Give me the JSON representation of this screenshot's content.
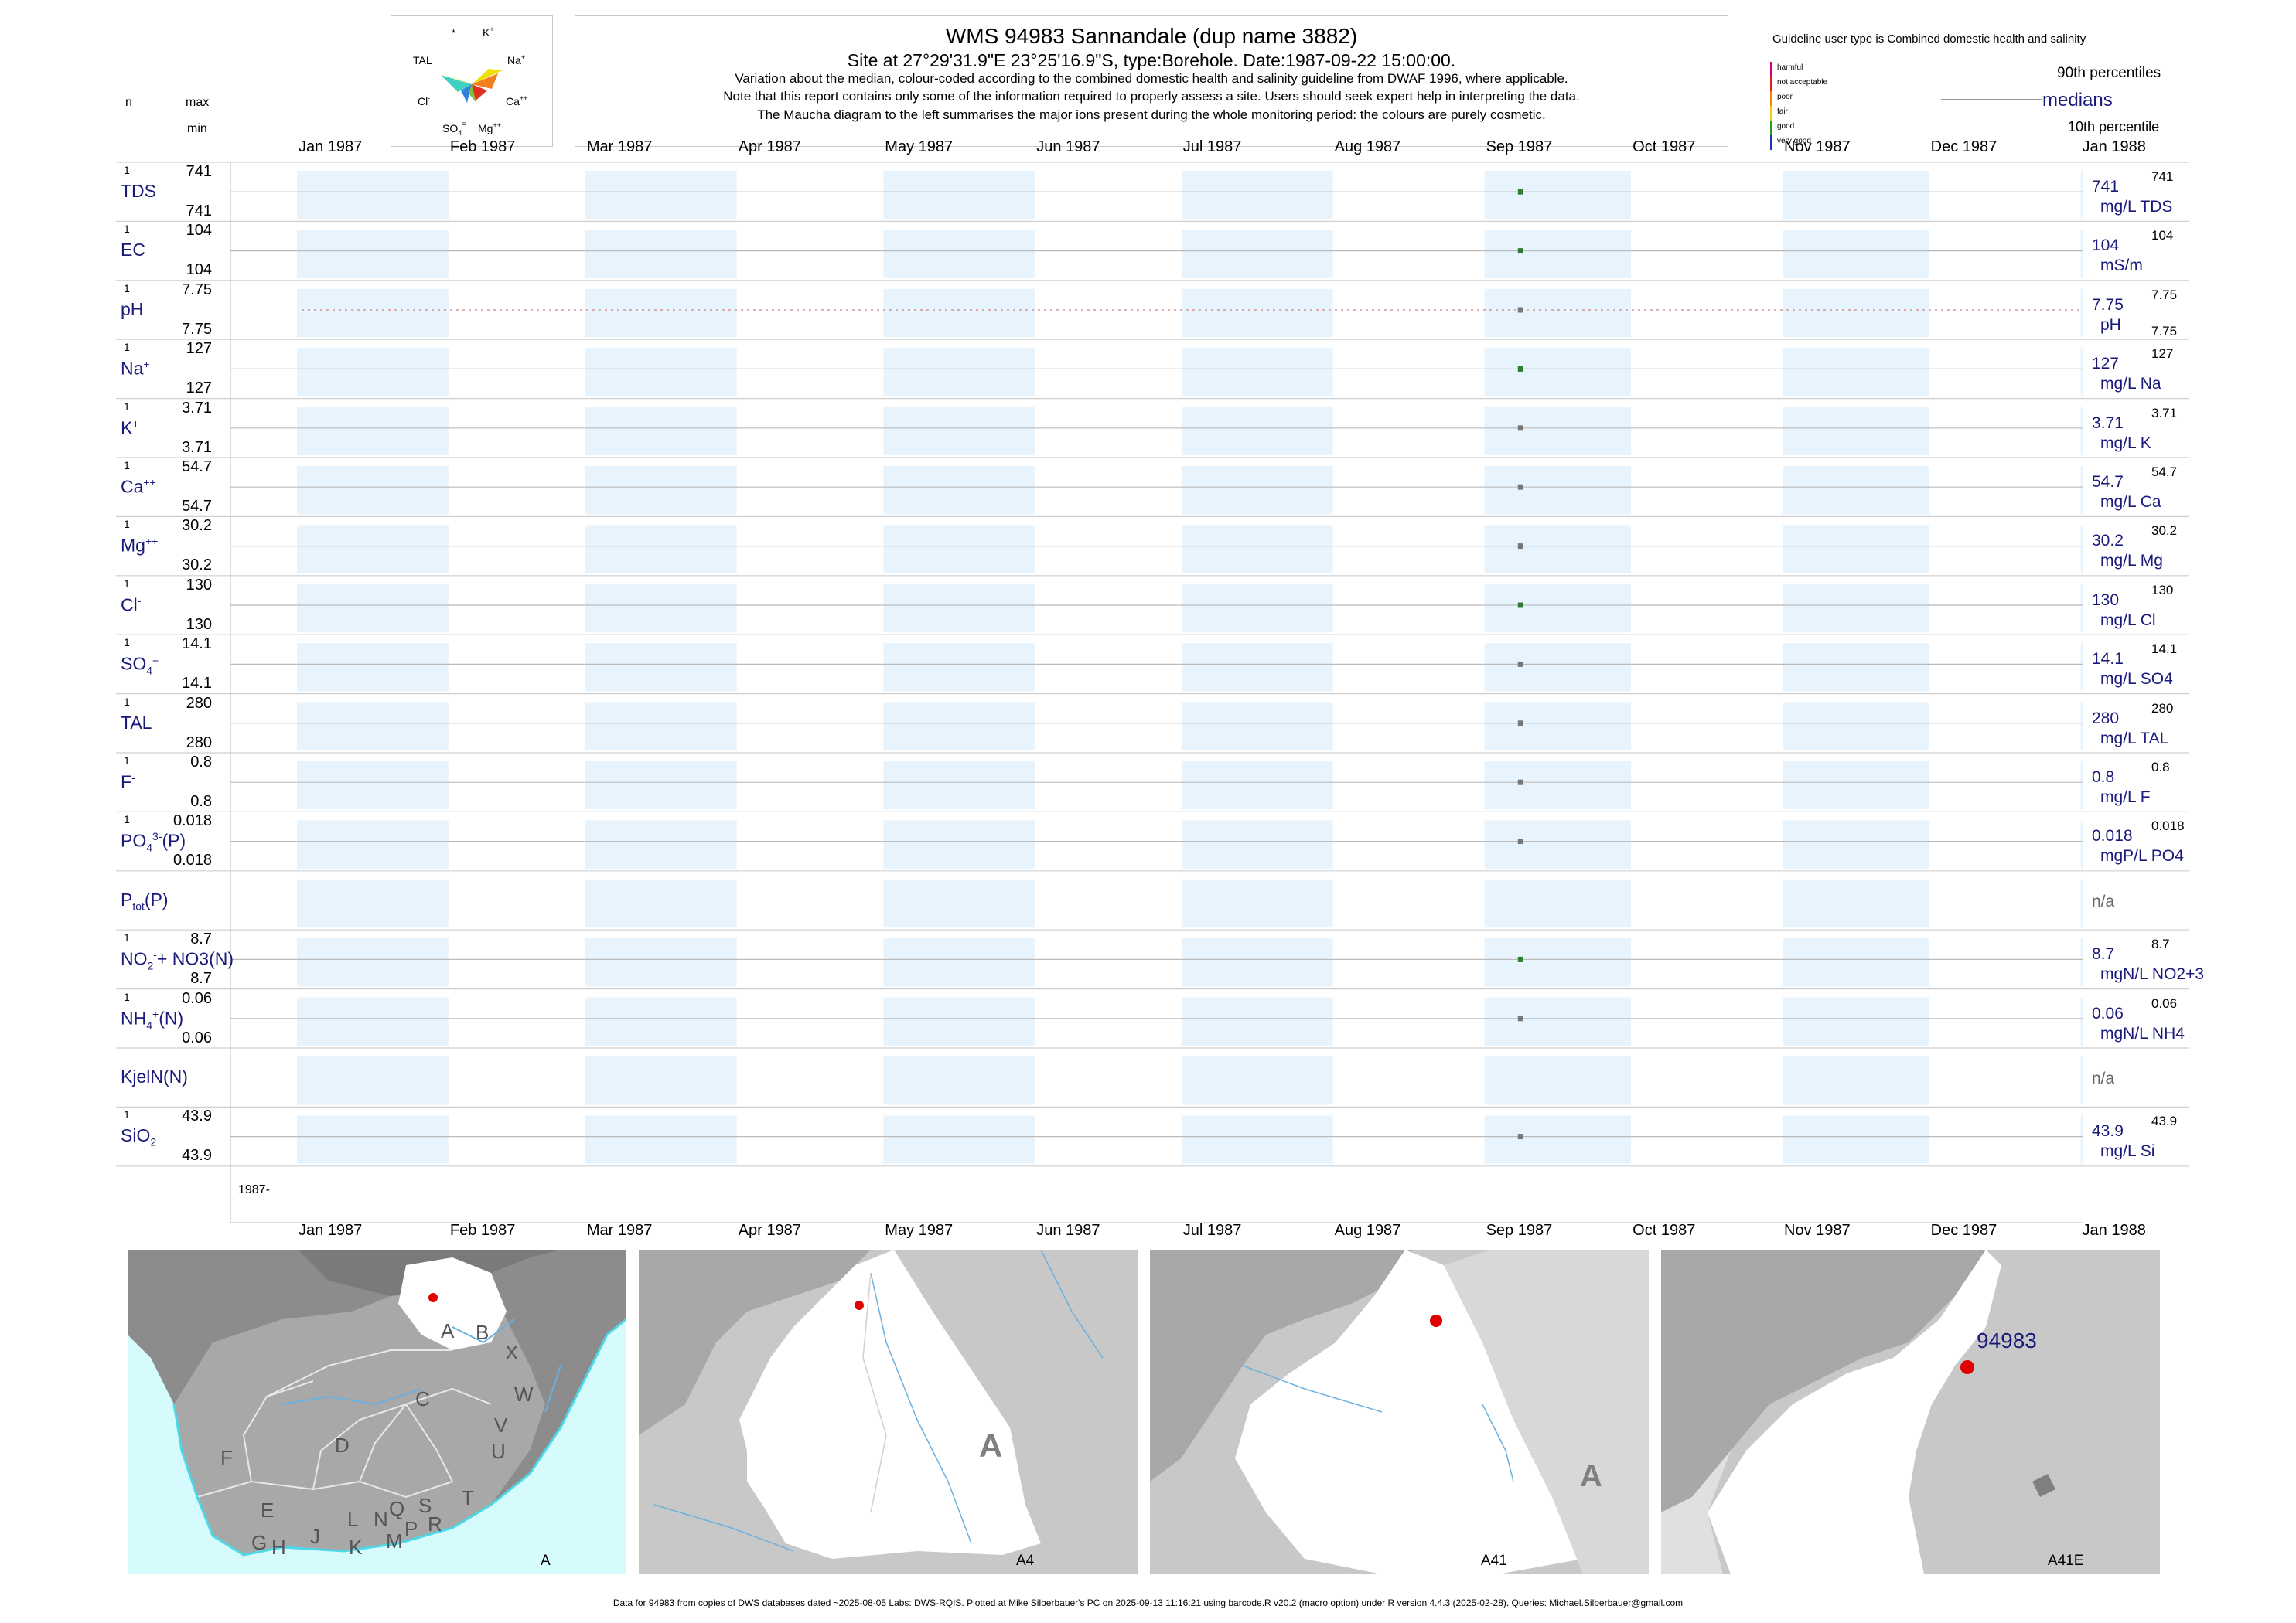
{
  "header": {
    "title": "WMS 94983  Sannandale (dup name 3882)",
    "subtitle": "Site at 27°29'31.9\"E 23°25'16.9\"S, type:Borehole. Date:1987-09-22 15:00:00.",
    "notes": [
      "Variation about the median,  colour-coded according to the combined domestic health and salinity guideline from DWAF 1996, where applicable.",
      "Note that this report contains only some of the information required to properly assess a site. Users should seek expert help in interpreting the data.",
      "The Maucha diagram to the left summarises the major ions present during the whole monitoring period: the colours are purely cosmetic."
    ],
    "col_n": "n",
    "col_max": "max",
    "col_min": "min"
  },
  "maucha": {
    "labels": [
      "*",
      "K+",
      "TAL",
      "Na+",
      "Cl-",
      "Ca++",
      "SO4=",
      "Mg++"
    ]
  },
  "legend": {
    "guideline_title": "Guideline user type is Combined domestic health and salinity",
    "levels": [
      {
        "label": "harmful",
        "color": "#d0007a"
      },
      {
        "label": "not acceptable",
        "color": "#e02020"
      },
      {
        "label": "poor",
        "color": "#ff8000"
      },
      {
        "label": "fair",
        "color": "#f0d000"
      },
      {
        "label": "good",
        "color": "#20a020"
      },
      {
        "label": "very good",
        "color": "#2030c0"
      }
    ],
    "p90": "90th percentiles",
    "medians": "medians",
    "p10": "10th percentile"
  },
  "chart_data": {
    "type": "scatter",
    "x_axis_months": [
      "Jan 1987",
      "Feb 1987",
      "Mar 1987",
      "Apr 1987",
      "May 1987",
      "Jun 1987",
      "Jul 1987",
      "Aug 1987",
      "Sep 1987",
      "Oct 1987",
      "Nov 1987",
      "Dec 1987",
      "Jan 1988"
    ],
    "year_label": "1987-",
    "sample_date": "1987-09-22",
    "colors": {
      "band": "#e8f4fd",
      "point_good": "#2e7d32",
      "point_gray": "#777777",
      "navy": "#1a1a7a"
    },
    "series": [
      {
        "name": "TDS",
        "n": "1",
        "max": "741",
        "min": "741",
        "value": 741,
        "right_value": "741",
        "right_unit": "mg/L TDS",
        "right_small": "741",
        "color": "good"
      },
      {
        "name": "EC",
        "n": "1",
        "max": "104",
        "min": "104",
        "value": 104,
        "right_value": "104",
        "right_unit": "mS/m",
        "right_small": "104",
        "color": "good"
      },
      {
        "name": "pH",
        "n": "1",
        "max": "7.75",
        "min": "7.75",
        "value": 7.75,
        "right_value": "7.75",
        "right_unit": "pH",
        "right_small": "7.75",
        "right_small2": "7.75",
        "color": "gray"
      },
      {
        "name": "Na",
        "sup": "+",
        "n": "1",
        "max": "127",
        "min": "127",
        "value": 127,
        "right_value": "127",
        "right_unit": "mg/L Na",
        "right_small": "127",
        "color": "good"
      },
      {
        "name": "K",
        "sup": "+",
        "n": "1",
        "max": "3.71",
        "min": "3.71",
        "value": 3.71,
        "right_value": "3.71",
        "right_unit": "mg/L K",
        "right_small": "3.71",
        "color": "gray"
      },
      {
        "name": "Ca",
        "sup": "++",
        "n": "1",
        "max": "54.7",
        "min": "54.7",
        "value": 54.7,
        "right_value": "54.7",
        "right_unit": "mg/L Ca",
        "right_small": "54.7",
        "color": "gray"
      },
      {
        "name": "Mg",
        "sup": "++",
        "n": "1",
        "max": "30.2",
        "min": "30.2",
        "value": 30.2,
        "right_value": "30.2",
        "right_unit": "mg/L Mg",
        "right_small": "30.2",
        "color": "gray"
      },
      {
        "name": "Cl",
        "sup": "-",
        "n": "1",
        "max": "130",
        "min": "130",
        "value": 130,
        "right_value": "130",
        "right_unit": "mg/L Cl",
        "right_small": "130",
        "color": "good"
      },
      {
        "name": "SO",
        "sub": "4",
        "sup": "=",
        "n": "1",
        "max": "14.1",
        "min": "14.1",
        "value": 14.1,
        "right_value": "14.1",
        "right_unit": "mg/L SO4",
        "right_small": "14.1",
        "color": "gray"
      },
      {
        "name": "TAL",
        "n": "1",
        "max": "280",
        "min": "280",
        "value": 280,
        "right_value": "280",
        "right_unit": "mg/L TAL",
        "right_small": "280",
        "color": "gray"
      },
      {
        "name": "F",
        "sup": "-",
        "n": "1",
        "max": "0.8",
        "min": "0.8",
        "value": 0.8,
        "right_value": "0.8",
        "right_unit": "mg/L F",
        "right_small": "0.8",
        "color": "gray"
      },
      {
        "name": "PO",
        "sub": "4",
        "sup": "3-",
        "suffix": "(P)",
        "n": "1",
        "max": "0.018",
        "min": "0.018",
        "value": 0.018,
        "right_value": "0.018",
        "right_unit": "mgP/L PO4",
        "right_small": "0.018",
        "color": "gray"
      },
      {
        "name": "P",
        "sub": "tot",
        "suffix": "(P)",
        "na": true,
        "right_value": "n/a"
      },
      {
        "name": "NO",
        "sub": "2",
        "sup": "-",
        "suffix": "+ NO3(N)",
        "n": "1",
        "max": "8.7",
        "min": "8.7",
        "value": 8.7,
        "right_value": "8.7",
        "right_unit": "mgN/L NO2+3",
        "right_small": "8.7",
        "color": "good"
      },
      {
        "name": "NH",
        "sub": "4",
        "sup": "+",
        "suffix": "(N)",
        "n": "1",
        "max": "0.06",
        "min": "0.06",
        "value": 0.06,
        "right_value": "0.06",
        "right_unit": "mgN/L NH4",
        "right_small": "0.06",
        "color": "gray"
      },
      {
        "name": "KjelN(N)",
        "na": true,
        "right_value": "n/a"
      },
      {
        "name": "SiO",
        "sub": "2",
        "n": "1",
        "max": "43.9",
        "min": "43.9",
        "value": 43.9,
        "right_value": "43.9",
        "right_unit": "mg/L Si",
        "right_small": "43.9",
        "color": "gray"
      }
    ]
  },
  "maps": {
    "panels": [
      {
        "caption": "A",
        "letters": [
          "A",
          "B",
          "X",
          "W",
          "C",
          "V",
          "U",
          "D",
          "F",
          "E",
          "T",
          "G",
          "H",
          "J",
          "K",
          "L",
          "N",
          "Q",
          "M",
          "P",
          "S",
          "R"
        ]
      },
      {
        "caption": "A4",
        "big_letter": "A"
      },
      {
        "caption": "A41",
        "big_letter": "A"
      },
      {
        "caption": "A41E",
        "site_label": "94983"
      }
    ]
  },
  "footer": "Data for 94983 from copies of DWS databases dated ~2025-08-05 Labs: DWS-RQIS. Plotted at Mike Silberbauer's PC on 2025-09-13 11:16:21 using barcode.R v20.2 (macro option) under R version 4.4.3 (2025-02-28). Queries: Michael.Silberbauer@gmail.com"
}
